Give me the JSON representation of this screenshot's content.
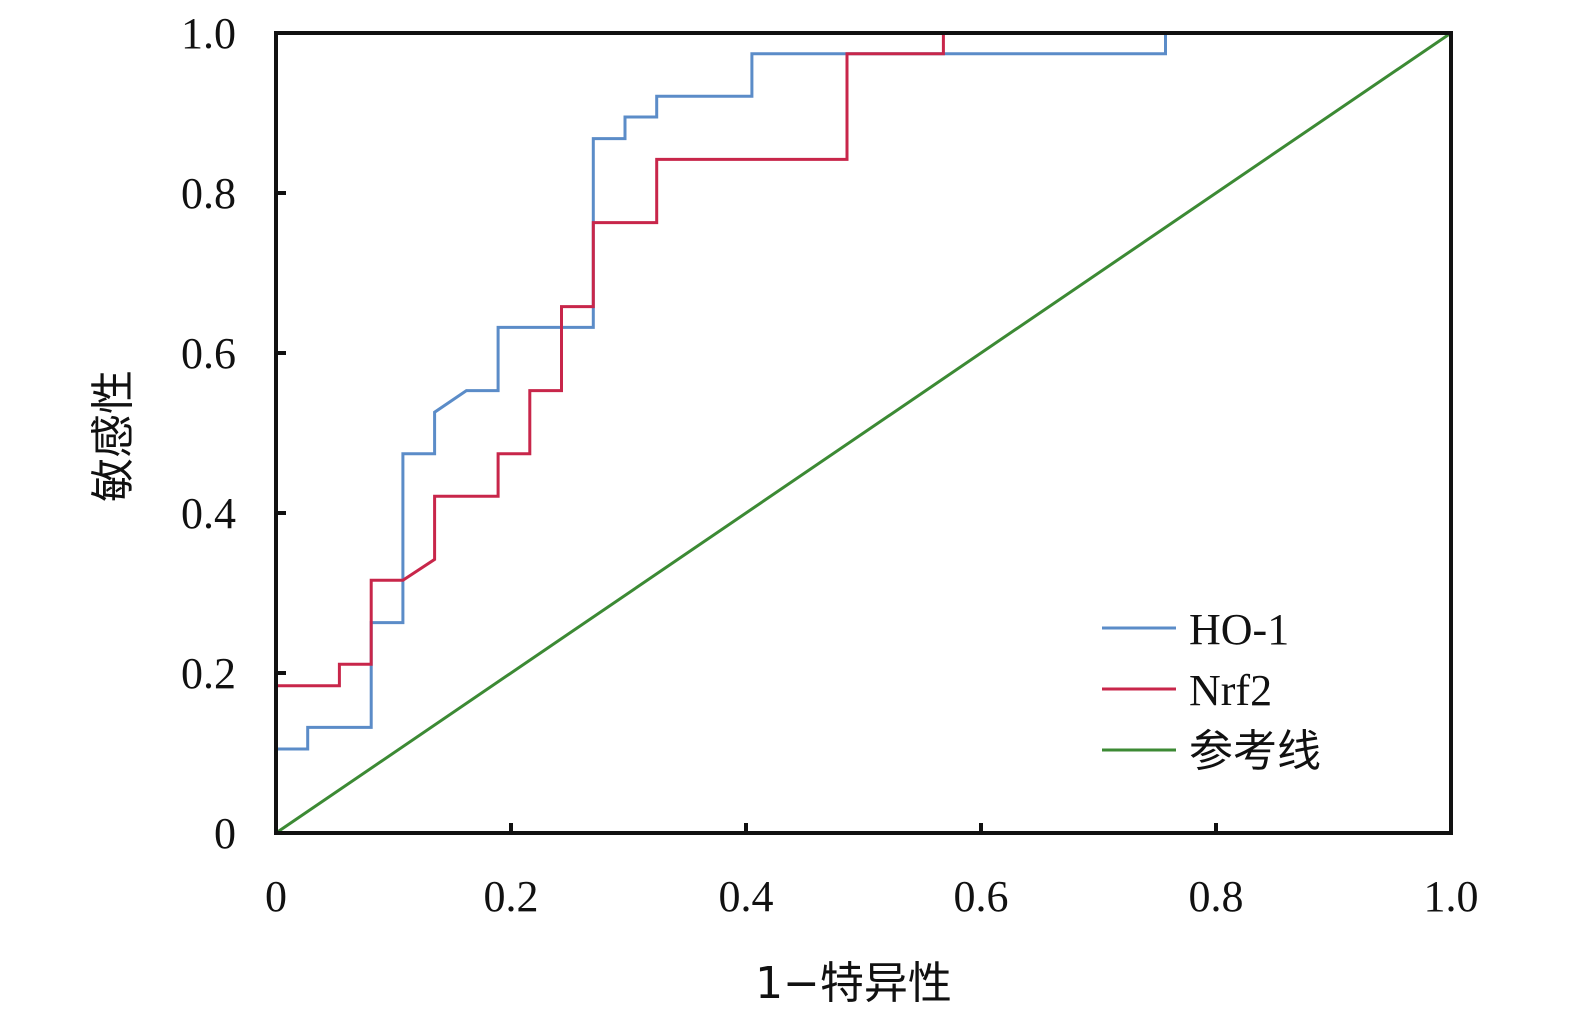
{
  "chart_data": {
    "type": "line",
    "title": "",
    "xlabel": "1−特异性",
    "ylabel": "敏感性",
    "xlim": [
      0,
      1.0
    ],
    "ylim": [
      0,
      1.0
    ],
    "x_ticks": [
      "0",
      "0.2",
      "0.4",
      "0.6",
      "0.8",
      "1.0"
    ],
    "y_ticks": [
      "0",
      "0.2",
      "0.4",
      "0.6",
      "0.8",
      "1.0"
    ],
    "grid": false,
    "legend_position": "bottom-right",
    "series": [
      {
        "name": "HO-1",
        "color": "#5b8cc8",
        "x": [
          0,
          0,
          0.027,
          0.027,
          0.081,
          0.081,
          0.108,
          0.108,
          0.135,
          0.135,
          0.162,
          0.189,
          0.189,
          0.27,
          0.27,
          0.297,
          0.297,
          0.324,
          0.324,
          0.405,
          0.405,
          0.757,
          0.757,
          1.0
        ],
        "y": [
          0,
          0.105,
          0.105,
          0.132,
          0.132,
          0.263,
          0.263,
          0.474,
          0.474,
          0.526,
          0.553,
          0.553,
          0.632,
          0.632,
          0.868,
          0.868,
          0.895,
          0.895,
          0.921,
          0.921,
          0.974,
          0.974,
          1.0,
          1.0
        ]
      },
      {
        "name": "Nrf2",
        "color": "#c8264a",
        "x": [
          0,
          0,
          0.054,
          0.054,
          0.081,
          0.081,
          0.108,
          0.135,
          0.135,
          0.189,
          0.189,
          0.216,
          0.216,
          0.243,
          0.243,
          0.27,
          0.27,
          0.324,
          0.324,
          0.486,
          0.486,
          0.568,
          0.568,
          1.0
        ],
        "y": [
          0,
          0.184,
          0.184,
          0.211,
          0.211,
          0.316,
          0.316,
          0.342,
          0.421,
          0.421,
          0.474,
          0.474,
          0.553,
          0.553,
          0.658,
          0.658,
          0.763,
          0.763,
          0.842,
          0.842,
          0.974,
          0.974,
          1.0,
          1.0
        ]
      },
      {
        "name": "参考线",
        "color": "#3c8a34",
        "x": [
          0,
          1.0
        ],
        "y": [
          0,
          1.0
        ]
      }
    ]
  }
}
